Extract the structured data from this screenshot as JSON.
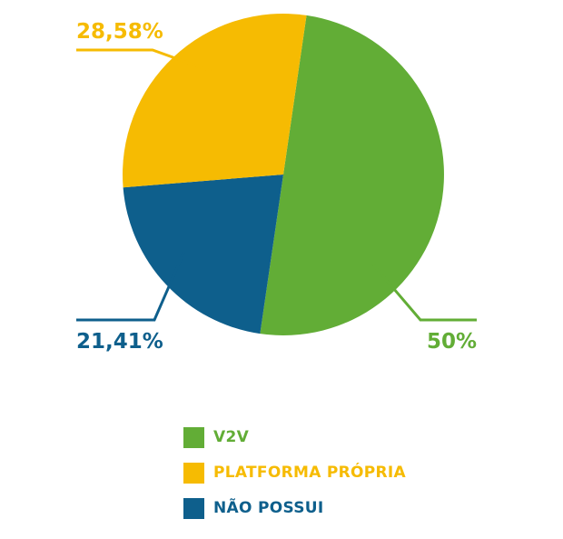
{
  "chart_data": {
    "type": "pie",
    "slices": [
      {
        "name": "V2V",
        "value": 50,
        "label": "50%",
        "color": "#62ad36"
      },
      {
        "name": "NÃO POSSUI",
        "value": 21.41,
        "label": "21,41%",
        "color": "#0e5f8c"
      },
      {
        "name": "PLATFORMA PRÓPRIA",
        "value": 28.58,
        "label": "28,58%",
        "color": "#f6bb02"
      }
    ],
    "legend_position": "bottom"
  },
  "legend": {
    "items": [
      {
        "label": "V2V",
        "color": "#62ad36"
      },
      {
        "label": "PLATFORMA PRÓPRIA",
        "color": "#f6bb02"
      },
      {
        "label": "NÃO POSSUI",
        "color": "#0e5f8c"
      }
    ]
  }
}
